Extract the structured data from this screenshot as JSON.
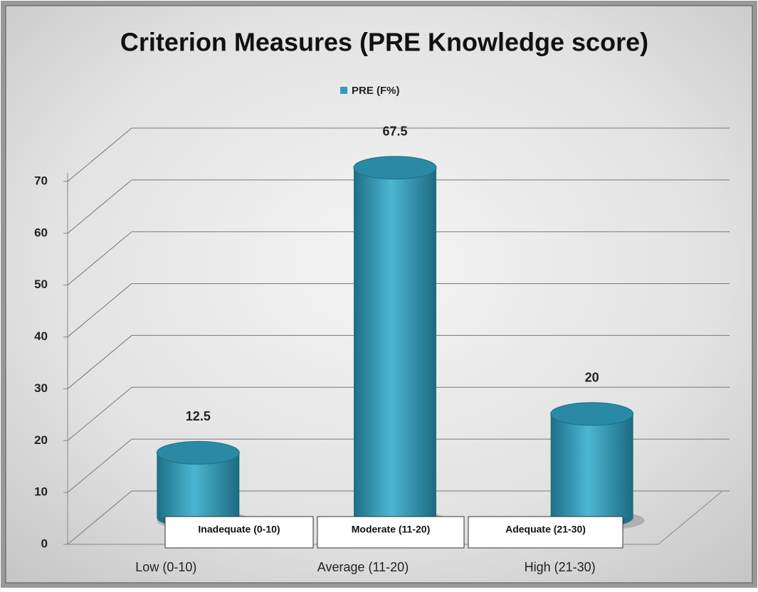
{
  "chart_data": {
    "type": "bar3d",
    "title": "Criterion Measures  (PRE Knowledge score)",
    "categories": [
      "Low (0-10)",
      "Average (11-20)",
      "High (21-30)"
    ],
    "series": [
      {
        "name": "PRE  (F%)",
        "color": "#2f9cb9",
        "values": [
          12.5,
          67.5,
          20
        ]
      }
    ],
    "annotations": [
      "Inadequate (0-10)",
      "Moderate (11-20)",
      "Adequate (21-30)"
    ],
    "ylim": [
      0,
      70
    ],
    "yticks": [
      0,
      10,
      20,
      30,
      40,
      50,
      60,
      70
    ],
    "grid": true,
    "legend": "top"
  }
}
